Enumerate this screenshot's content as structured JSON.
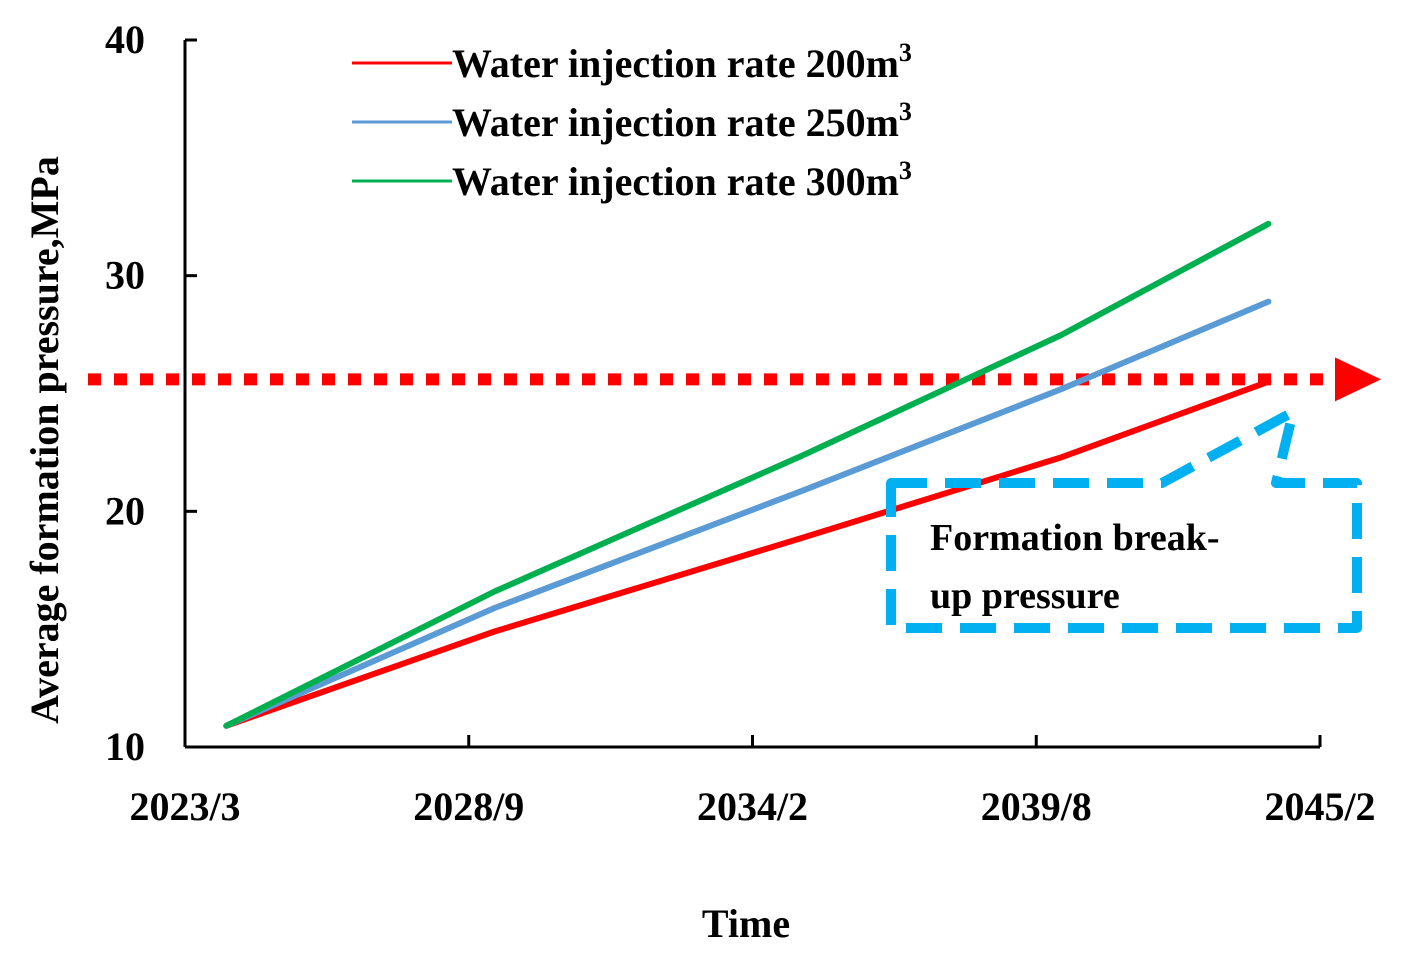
{
  "chart_data": {
    "type": "line",
    "xlabel": "Time",
    "ylabel": "Average formation pressure,MPa",
    "x_ticks": [
      "2023/3",
      "2028/9",
      "2034/2",
      "2039/8",
      "2045/2"
    ],
    "x_unit": "years since 2023/3",
    "x_tick_values": [
      0,
      5.5,
      11,
      16.5,
      22
    ],
    "xlim": [
      0,
      22
    ],
    "ylim": [
      10,
      40
    ],
    "y_ticks": [
      10,
      20,
      30,
      40
    ],
    "series": [
      {
        "name": "Water injection rate 200m3",
        "legend_text": "Water injection rate 200m",
        "legend_sup": "3",
        "color": "#ff0000",
        "x": [
          0.8,
          6,
          12,
          17,
          21
        ],
        "values": [
          10.9,
          14.9,
          18.9,
          22.3,
          25.5
        ]
      },
      {
        "name": "Water injection rate 250m3",
        "legend_text": "Water injection rate 250m",
        "legend_sup": "3",
        "color": "#5b9bd5",
        "x": [
          0.8,
          6,
          12,
          17,
          21
        ],
        "values": [
          10.9,
          15.9,
          20.9,
          25.2,
          28.9
        ]
      },
      {
        "name": "Water injection rate 300m3",
        "legend_text": "Water injection rate 300m",
        "legend_sup": "3",
        "color": "#00b050",
        "x": [
          0.8,
          6,
          12,
          17,
          21
        ],
        "values": [
          10.9,
          16.6,
          22.4,
          27.5,
          32.2
        ]
      }
    ],
    "reference_line": {
      "value": 25.6,
      "color": "#ff0000",
      "style": "dotted-arrow"
    },
    "annotation": {
      "lines": [
        "Formation break-",
        "up pressure"
      ],
      "color": "#00b0f0",
      "points_to_x": 21.7,
      "points_to_y": 24.0
    },
    "legend_position": "top-center"
  }
}
